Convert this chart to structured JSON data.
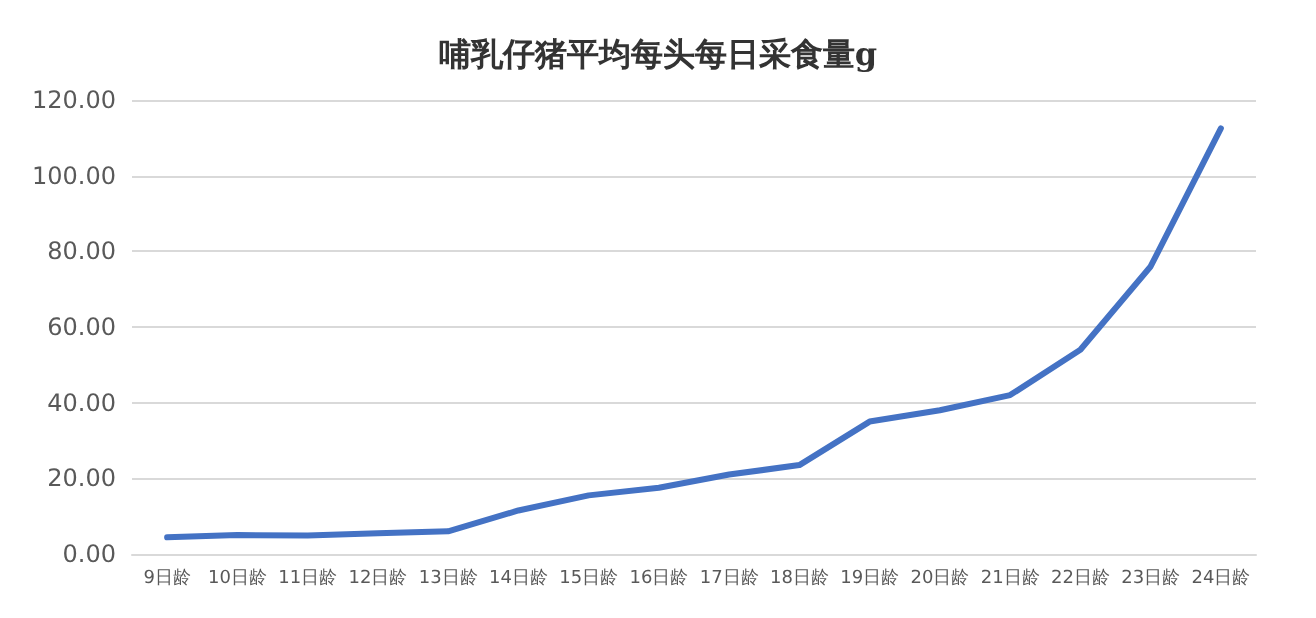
{
  "chart_data": {
    "type": "line",
    "title": "哺乳仔猪平均每头每日采食量g",
    "categories": [
      "9日龄",
      "10日龄",
      "11日龄",
      "12日龄",
      "13日龄",
      "14日龄",
      "15日龄",
      "16日龄",
      "17日龄",
      "18日龄",
      "19日龄",
      "20日龄",
      "21日龄",
      "22日龄",
      "23日龄",
      "24日龄"
    ],
    "series": [
      {
        "color": "#4472c4",
        "values": [
          4.4,
          5,
          4.9,
          5.5,
          6,
          11.5,
          15.5,
          17.5,
          21,
          23.5,
          35,
          38,
          42,
          54,
          76,
          112.5
        ]
      }
    ],
    "ylim": [
      0,
      120
    ],
    "yticks": [
      {
        "value": 0,
        "label": "0.00"
      },
      {
        "value": 20,
        "label": "20.00"
      },
      {
        "value": 40,
        "label": "40.00"
      },
      {
        "value": 60,
        "label": "60.00"
      },
      {
        "value": 80,
        "label": "80.00"
      },
      {
        "value": 100,
        "label": "100.00"
      },
      {
        "value": 120,
        "label": "120.00"
      }
    ],
    "grid": "y",
    "marker": "none",
    "line_style": "solid"
  }
}
